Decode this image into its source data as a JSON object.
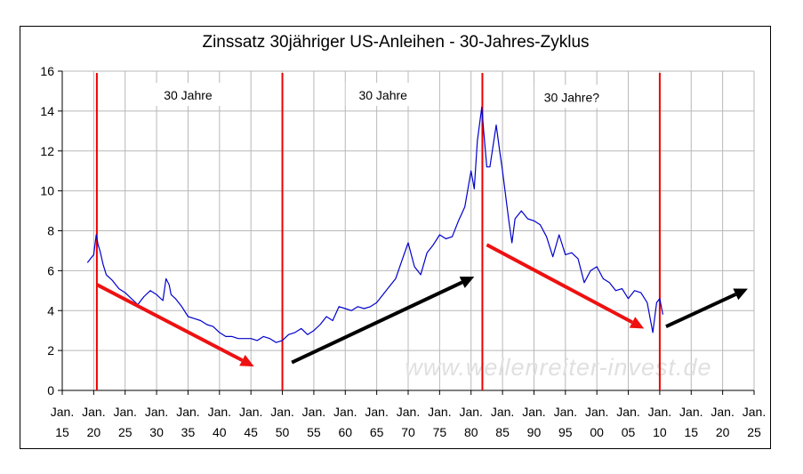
{
  "chart_data": {
    "type": "line",
    "title": "Zinssatz 30jähriger US-Anleihen - 30-Jahres-Zyklus",
    "xlabel": "",
    "ylabel": "",
    "xlim": [
      1915,
      2025
    ],
    "ylim": [
      0,
      16
    ],
    "grid": true,
    "yticks": [
      "0",
      "2",
      "4",
      "6",
      "8",
      "10",
      "12",
      "14",
      "16"
    ],
    "xticks": [
      {
        "line1": "Jan.",
        "line2": "15"
      },
      {
        "line1": "Jan.",
        "line2": "20"
      },
      {
        "line1": "Jan.",
        "line2": "25"
      },
      {
        "line1": "Jan.",
        "line2": "30"
      },
      {
        "line1": "Jan.",
        "line2": "35"
      },
      {
        "line1": "Jan.",
        "line2": "40"
      },
      {
        "line1": "Jan.",
        "line2": "45"
      },
      {
        "line1": "Jan.",
        "line2": "50"
      },
      {
        "line1": "Jan.",
        "line2": "55"
      },
      {
        "line1": "Jan.",
        "line2": "60"
      },
      {
        "line1": "Jan.",
        "line2": "65"
      },
      {
        "line1": "Jan.",
        "line2": "70"
      },
      {
        "line1": "Jan.",
        "line2": "75"
      },
      {
        "line1": "Jan.",
        "line2": "80"
      },
      {
        "line1": "Jan.",
        "line2": "85"
      },
      {
        "line1": "Jan.",
        "line2": "90"
      },
      {
        "line1": "Jan.",
        "line2": "95"
      },
      {
        "line1": "Jan.",
        "line2": "00"
      },
      {
        "line1": "Jan.",
        "line2": "05"
      },
      {
        "line1": "Jan.",
        "line2": "10"
      },
      {
        "line1": "Jan.",
        "line2": "15"
      },
      {
        "line1": "Jan.",
        "line2": "20"
      },
      {
        "line1": "Jan.",
        "line2": "25"
      }
    ],
    "series": [
      {
        "name": "Zinssatz 30jähriger US-Anleihen",
        "color": "#0000cc",
        "x": [
          1919.0,
          1919.5,
          1920.0,
          1920.4,
          1920.7,
          1921.0,
          1921.5,
          1922.0,
          1923.0,
          1924.0,
          1925.0,
          1926.0,
          1927.0,
          1928.0,
          1929.0,
          1930.0,
          1931.0,
          1931.5,
          1932.0,
          1932.3,
          1933.0,
          1934.0,
          1935.0,
          1936.0,
          1937.0,
          1938.0,
          1939.0,
          1940.0,
          1941.0,
          1942.0,
          1943.0,
          1944.0,
          1945.0,
          1946.0,
          1947.0,
          1948.0,
          1949.0,
          1950.0,
          1951.0,
          1952.0,
          1953.0,
          1954.0,
          1955.0,
          1956.0,
          1957.0,
          1958.0,
          1959.0,
          1960.0,
          1961.0,
          1962.0,
          1963.0,
          1964.0,
          1965.0,
          1966.0,
          1967.0,
          1968.0,
          1969.0,
          1970.0,
          1970.5,
          1971.0,
          1972.0,
          1973.0,
          1974.0,
          1975.0,
          1976.0,
          1977.0,
          1978.0,
          1979.0,
          1980.0,
          1980.5,
          1981.0,
          1981.7,
          1982.0,
          1982.5,
          1983.0,
          1984.0,
          1984.5,
          1985.0,
          1986.0,
          1986.5,
          1987.0,
          1988.0,
          1989.0,
          1990.0,
          1991.0,
          1992.0,
          1993.0,
          1994.0,
          1995.0,
          1996.0,
          1997.0,
          1998.0,
          1999.0,
          2000.0,
          2001.0,
          2002.0,
          2003.0,
          2004.0,
          2005.0,
          2006.0,
          2007.0,
          2008.0,
          2008.9,
          2009.5,
          2010.0,
          2010.5
        ],
        "values": [
          6.4,
          6.6,
          6.8,
          7.8,
          7.3,
          7.0,
          6.3,
          5.8,
          5.5,
          5.1,
          4.9,
          4.6,
          4.3,
          4.7,
          5.0,
          4.8,
          4.5,
          5.6,
          5.3,
          4.8,
          4.6,
          4.2,
          3.7,
          3.6,
          3.5,
          3.3,
          3.2,
          2.9,
          2.7,
          2.7,
          2.6,
          2.6,
          2.6,
          2.5,
          2.7,
          2.6,
          2.4,
          2.5,
          2.8,
          2.9,
          3.1,
          2.8,
          3.0,
          3.3,
          3.7,
          3.5,
          4.2,
          4.1,
          4.0,
          4.2,
          4.1,
          4.2,
          4.4,
          4.8,
          5.2,
          5.6,
          6.5,
          7.4,
          6.8,
          6.2,
          5.8,
          6.9,
          7.3,
          7.8,
          7.6,
          7.7,
          8.5,
          9.2,
          11.0,
          10.1,
          12.5,
          14.2,
          13.0,
          11.2,
          11.2,
          13.3,
          12.1,
          11.0,
          8.5,
          7.4,
          8.6,
          9.0,
          8.6,
          8.5,
          8.3,
          7.7,
          6.7,
          7.8,
          6.8,
          6.9,
          6.6,
          5.4,
          6.0,
          6.2,
          5.6,
          5.4,
          5.0,
          5.1,
          4.6,
          5.0,
          4.9,
          4.4,
          2.9,
          4.4,
          4.6,
          3.8
        ]
      }
    ],
    "cycle_markers": [
      1920.5,
      1950.0,
      1981.8,
      2010.0
    ],
    "annotations": [
      {
        "text": "30 Jahre",
        "x": 1935.0,
        "y": 14.7
      },
      {
        "text": "30 Jahre",
        "x": 1966.0,
        "y": 14.7
      },
      {
        "text": "30 Jahre?",
        "x": 1996.0,
        "y": 14.6
      }
    ],
    "trend_arrows": [
      {
        "color": "red",
        "from": [
          1920.5,
          5.3
        ],
        "to": [
          1945.5,
          1.2
        ]
      },
      {
        "color": "black",
        "from": [
          1951.5,
          1.4
        ],
        "to": [
          1980.5,
          5.7
        ]
      },
      {
        "color": "red",
        "from": [
          1982.5,
          7.3
        ],
        "to": [
          2007.5,
          3.1
        ]
      },
      {
        "color": "black",
        "from": [
          2011.0,
          3.2
        ],
        "to": [
          2024.0,
          5.1
        ]
      }
    ],
    "watermark": "www.wellenreiter-invest.de"
  }
}
